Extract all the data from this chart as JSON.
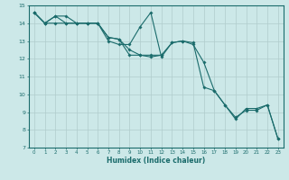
{
  "title": "",
  "xlabel": "Humidex (Indice chaleur)",
  "ylabel": "",
  "bg_color": "#cce8e8",
  "grid_color": "#b0cccc",
  "line_color": "#1a6b6b",
  "xlim": [
    -0.5,
    23.5
  ],
  "ylim": [
    7,
    15
  ],
  "xticks": [
    0,
    1,
    2,
    3,
    4,
    5,
    6,
    7,
    8,
    9,
    10,
    11,
    12,
    13,
    14,
    15,
    16,
    17,
    18,
    19,
    20,
    21,
    22,
    23
  ],
  "yticks": [
    7,
    8,
    9,
    10,
    11,
    12,
    13,
    14,
    15
  ],
  "series": [
    [
      14.6,
      14.0,
      14.4,
      14.4,
      14.0,
      14.0,
      14.0,
      13.0,
      12.8,
      12.8,
      13.8,
      14.6,
      12.1,
      12.9,
      13.0,
      12.8,
      11.8,
      10.2,
      9.4,
      8.6,
      9.2,
      9.2,
      9.4,
      7.5
    ],
    [
      14.6,
      14.0,
      14.4,
      14.0,
      14.0,
      14.0,
      14.0,
      13.2,
      13.1,
      12.2,
      12.2,
      12.1,
      12.2,
      null,
      null,
      null,
      null,
      null,
      null,
      null,
      null,
      null,
      null,
      null
    ],
    [
      14.6,
      14.0,
      14.0,
      14.0,
      14.0,
      14.0,
      14.0,
      13.2,
      13.1,
      12.5,
      12.2,
      12.2,
      12.2,
      12.9,
      13.0,
      12.9,
      10.4,
      10.2,
      9.4,
      8.7,
      9.1,
      9.1,
      9.4,
      7.5
    ]
  ]
}
